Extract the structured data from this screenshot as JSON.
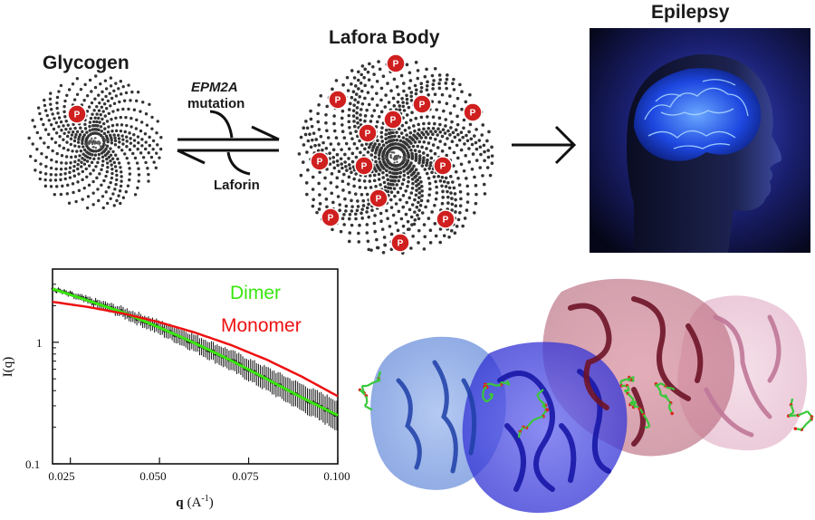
{
  "top": {
    "glycogen_label": "Glycogen",
    "lafora_label": "Lafora Body",
    "epilepsy_label": "Epilepsy",
    "mutation_gene": "EPM2A",
    "mutation_word": "mutation",
    "laforin_label": "Laforin",
    "phosphate_symbol": "P"
  },
  "chart_data": {
    "type": "line",
    "xlabel_main": "q",
    "xlabel_unit": "(A",
    "xlabel_exp": "-1",
    "xlabel_close": ")",
    "ylabel": "I(q)",
    "x_ticks": [
      "0.025",
      "0.050",
      "0.075",
      "0.100"
    ],
    "y_ticks": [
      "1",
      "0.1"
    ],
    "xlim": [
      0.02,
      0.1
    ],
    "ylim": [
      0.1,
      4.0
    ],
    "yscale": "log",
    "legend_position": "top-right",
    "series": [
      {
        "name": "Dimer",
        "color": "#39e60f",
        "x": [
          0.02,
          0.03,
          0.04,
          0.05,
          0.06,
          0.07,
          0.08,
          0.09,
          0.1
        ],
        "y": [
          2.75,
          2.2,
          1.75,
          1.32,
          0.98,
          0.71,
          0.5,
          0.35,
          0.25
        ]
      },
      {
        "name": "Monomer",
        "color": "#ee1111",
        "x": [
          0.02,
          0.03,
          0.04,
          0.05,
          0.06,
          0.07,
          0.08,
          0.09,
          0.1
        ],
        "y": [
          2.15,
          1.95,
          1.72,
          1.46,
          1.2,
          0.95,
          0.72,
          0.52,
          0.36
        ]
      }
    ],
    "data_points_color": "#111111"
  },
  "colors": {
    "phosphate": "#d01f1f",
    "chain": "#333333",
    "protein_light_blue": "#5a82d6",
    "protein_dark_blue": "#2a2bd0",
    "protein_maroon": "#8a2236",
    "protein_pink": "#d9a3bd",
    "ligand": "#38c83a"
  }
}
